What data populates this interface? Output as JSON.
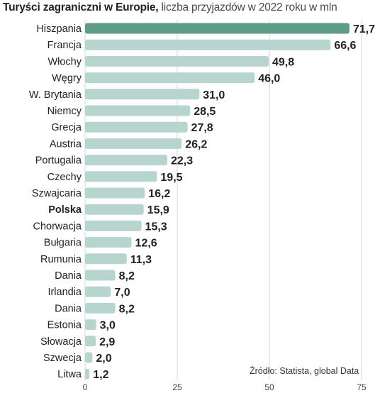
{
  "title": {
    "bold": "Turyści zagraniczni w Europie,",
    "light": " liczba przyjazdów w 2022 roku w mln"
  },
  "source": "Źródło:  Statista, global Data",
  "colors": {
    "bar": "#b7d5cf",
    "bar_highlight": "#5c9c89",
    "grid": "#d4d4d4"
  },
  "chart_data": {
    "type": "bar",
    "orientation": "horizontal",
    "title": "Turyści zagraniczni w Europie, liczba przyjazdów w 2022 roku w mln",
    "categories": [
      "Hiszpania",
      "Francja",
      "Włochy",
      "Węgry",
      "W. Brytania",
      "Niemcy",
      "Grecja",
      "Austria",
      "Portugalia",
      "Czechy",
      "Szwajcaria",
      "Polska",
      "Chorwacja",
      "Bułgaria",
      "Rumunia",
      "Dania",
      "Irlandia",
      "Dania",
      "Estonia",
      "Słowacja",
      "Szwecja",
      "Litwa"
    ],
    "values": [
      71.7,
      66.6,
      49.8,
      46.0,
      31.0,
      28.5,
      27.8,
      26.2,
      22.3,
      19.5,
      16.2,
      15.9,
      15.3,
      12.6,
      11.3,
      8.2,
      7.0,
      8.2,
      3.0,
      2.9,
      2.0,
      1.2
    ],
    "value_labels": [
      "71,7",
      "66,6",
      "49,8",
      "46,0",
      "31,0",
      "28,5",
      "27,8",
      "26,2",
      "22,3",
      "19,5",
      "16,2",
      "15,9",
      "15,3",
      "12,6",
      "11,3",
      "8,2",
      "7,0",
      "8,2",
      "3,0",
      "2,9",
      "2,0",
      "1,2"
    ],
    "highlight_bar": "Hiszpania",
    "highlight_label": "Polska",
    "xlim": [
      0,
      75
    ],
    "xticks": [
      0,
      25,
      50,
      75
    ],
    "xtick_labels": [
      "0",
      "25",
      "50",
      "75"
    ],
    "grid": true
  }
}
